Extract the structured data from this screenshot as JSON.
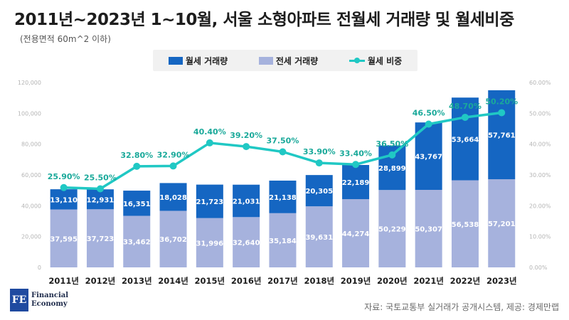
{
  "title": "2011년~2023년 1~10월, 서울 소형아파트 전월세 거래량 및 월세비중",
  "subtitle": "(전용면적 60m^2 이하)",
  "legend": {
    "monthly": "월세 거래량",
    "jeonse": "전세 거래량",
    "ratio": "월세 비중"
  },
  "colors": {
    "monthly": "#1566c2",
    "jeonse": "#a6b2dd",
    "ratio": "#20c8c4",
    "ratio_label": "#1aa99a"
  },
  "logo": {
    "mark": "FE",
    "line1": "Financial",
    "line2": "Economy"
  },
  "source": "자료: 국토교통부 실거래가 공개시스템, 제공: 경제만랩",
  "chart_data": {
    "type": "bar",
    "stacked": true,
    "categories": [
      "2011년",
      "2012년",
      "2013년",
      "2014년",
      "2015년",
      "2016년",
      "2017년",
      "2018년",
      "2019년",
      "2020년",
      "2021년",
      "2022년",
      "2023년"
    ],
    "series": [
      {
        "name": "전세 거래량",
        "axis": "left",
        "values": [
          37595,
          37723,
          33462,
          36702,
          31996,
          32640,
          35184,
          39631,
          44274,
          50229,
          50307,
          56538,
          57201
        ],
        "labels": [
          "37,595",
          "37,723",
          "33,462",
          "36,702",
          "31,996",
          "32,640",
          "35,184",
          "39,631",
          "44,274",
          "50,229",
          "50,307",
          "56,538",
          "57,201"
        ]
      },
      {
        "name": "월세 거래량",
        "axis": "left",
        "values": [
          13110,
          12931,
          16351,
          18028,
          21723,
          21031,
          21138,
          20305,
          22189,
          28899,
          43767,
          53664,
          57761
        ],
        "labels": [
          "13,110",
          "12,931",
          "16,351",
          "18,028",
          "21,723",
          "21,031",
          "21,138",
          "20,305",
          "22,189",
          "28,899",
          "43,767",
          "53,664",
          "57,761"
        ]
      },
      {
        "name": "월세 비중",
        "type": "line",
        "axis": "right",
        "values": [
          25.9,
          25.5,
          32.8,
          32.9,
          40.4,
          39.2,
          37.5,
          33.9,
          33.4,
          36.5,
          46.5,
          48.7,
          50.2
        ],
        "labels": [
          "25.90%",
          "25.50%",
          "32.80%",
          "32.90%",
          "40.40%",
          "39.20%",
          "37.50%",
          "33.90%",
          "33.40%",
          "36.50%",
          "46.50%",
          "48.70%",
          "50.20%"
        ]
      }
    ],
    "y_left": {
      "ylim": [
        0,
        120000
      ],
      "ticks": [
        0,
        20000,
        40000,
        60000,
        80000,
        100000,
        120000
      ],
      "tick_labels": [
        "0",
        "20,000",
        "40,000",
        "60,000",
        "80,000",
        "100,000",
        "120,000"
      ]
    },
    "y_right": {
      "ylim": [
        0,
        60
      ],
      "ticks": [
        0,
        10,
        20,
        30,
        40,
        50,
        60
      ],
      "tick_labels": [
        "0.00%",
        "10.00%",
        "20.00%",
        "30.00%",
        "40.00%",
        "50.00%",
        "60.00%"
      ]
    },
    "grid": false,
    "legend_position": "top-center"
  }
}
